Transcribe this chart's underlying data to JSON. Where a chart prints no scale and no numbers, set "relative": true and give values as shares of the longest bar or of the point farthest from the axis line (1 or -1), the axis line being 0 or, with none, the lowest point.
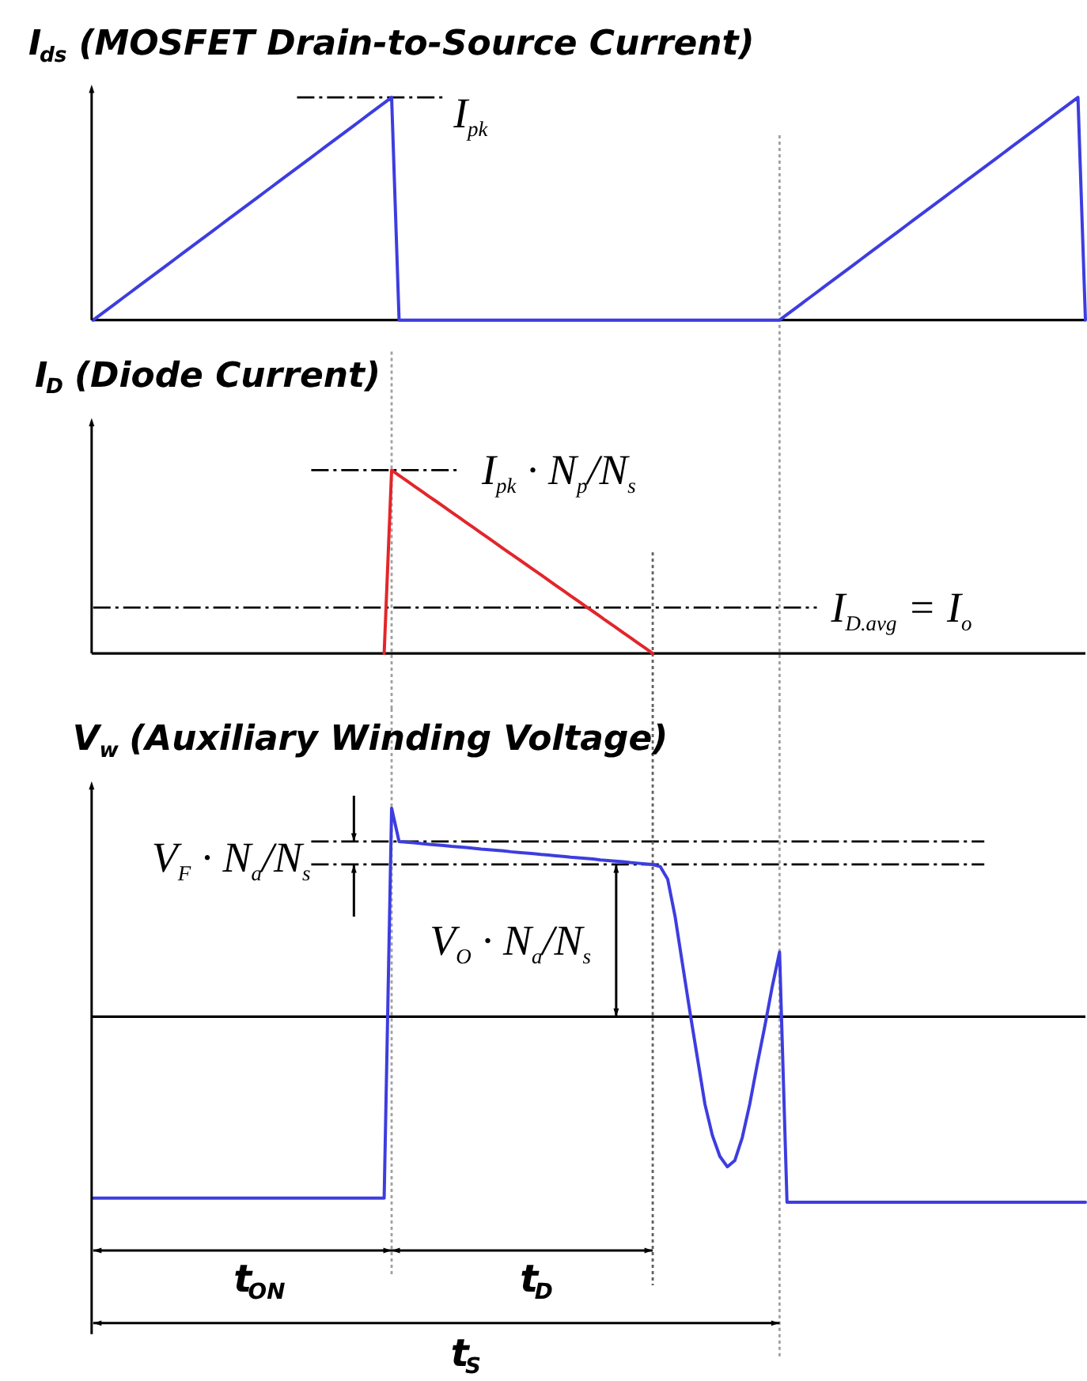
{
  "chart_data": [
    {
      "type": "line",
      "title": "I$_{ds}$ (MOSFET Drain-to-Source Current)",
      "relative": true,
      "tick_labels": false,
      "categories": [
        null,
        null,
        null,
        null,
        null,
        null,
        null,
        null,
        null,
        null,
        null,
        null,
        null,
        null,
        null,
        null,
        null,
        null,
        null,
        null,
        null,
        null,
        null,
        null,
        null,
        null,
        null,
        null,
        null,
        null,
        null,
        null,
        null,
        null,
        null,
        null,
        null,
        null,
        null,
        null,
        null,
        null,
        null,
        null,
        null,
        null,
        null,
        null,
        null,
        null,
        null,
        null,
        null,
        null,
        null,
        null,
        null,
        null,
        null,
        null,
        null,
        null,
        null,
        null,
        null,
        null,
        null,
        null,
        null,
        null,
        null,
        null,
        null,
        null,
        null,
        null,
        null,
        null,
        null,
        null,
        null,
        null,
        null,
        null,
        null,
        null,
        null,
        null,
        null,
        null,
        null,
        null,
        null,
        null,
        null,
        null,
        null,
        null,
        null,
        null,
        null,
        null,
        null,
        null,
        null,
        null,
        null,
        null,
        null,
        null,
        null,
        null,
        null,
        null,
        null,
        null,
        null,
        null,
        null,
        null,
        null,
        null,
        null,
        null,
        null,
        null,
        null,
        null,
        null,
        null,
        null,
        null,
        null,
        null
      ],
      "series": [
        {
          "color": "#3d3de0",
          "values": [
            0,
            0.025,
            0.05,
            0.075,
            0.1,
            0.125,
            0.15,
            0.175,
            0.2,
            0.225,
            0.25,
            0.275,
            0.3,
            0.325,
            0.35,
            0.375,
            0.4,
            0.425,
            0.45,
            0.475,
            0.5,
            0.525,
            0.55,
            0.575,
            0.6,
            0.625,
            0.65,
            0.675,
            0.7,
            0.725,
            0.75,
            0.775,
            0.8,
            0.825,
            0.85,
            0.875,
            0.9,
            0.925,
            0.95,
            0.975,
            1,
            0,
            0,
            0,
            0,
            0,
            0,
            0,
            0,
            0,
            0,
            0,
            0,
            0,
            0,
            0,
            0,
            0,
            0,
            0,
            0,
            0,
            0,
            0,
            0,
            0,
            0,
            0,
            0,
            0,
            0,
            0,
            0,
            0,
            0,
            0,
            0,
            0,
            0,
            0,
            0,
            0,
            0,
            0,
            0,
            0,
            0,
            0,
            0,
            0,
            0,
            0,
            0,
            0.025,
            0.05,
            0.075,
            0.1,
            0.125,
            0.15,
            0.175,
            0.2,
            0.225,
            0.25,
            0.275,
            0.3,
            0.325,
            0.35,
            0.375,
            0.4,
            0.425,
            0.45,
            0.475,
            0.5,
            0.525,
            0.55,
            0.575,
            0.6,
            0.625,
            0.65,
            0.675,
            0.7,
            0.725,
            0.75,
            0.775,
            0.8,
            0.825,
            0.85,
            0.875,
            0.9,
            0.925,
            0.95,
            0.975,
            1,
            0
          ]
        }
      ],
      "ref_lines": [
        {
          "axis": "y",
          "value": 1,
          "label": "I$_{pk}$",
          "line_style": "dashdot",
          "color": "#000000"
        }
      ]
    },
    {
      "type": "line",
      "title": "I$_{D}$ (Diode Current)",
      "relative": true,
      "tick_labels": false,
      "categories": [
        null,
        null,
        null,
        null,
        null,
        null,
        null,
        null,
        null,
        null,
        null,
        null,
        null,
        null,
        null,
        null,
        null,
        null,
        null,
        null,
        null,
        null,
        null,
        null,
        null,
        null,
        null,
        null,
        null,
        null,
        null,
        null,
        null,
        null,
        null,
        null,
        null,
        null,
        null,
        null,
        null,
        null,
        null,
        null,
        null,
        null,
        null,
        null,
        null,
        null,
        null,
        null,
        null,
        null,
        null,
        null,
        null,
        null,
        null,
        null,
        null,
        null,
        null,
        null,
        null,
        null,
        null,
        null,
        null,
        null,
        null,
        null,
        null,
        null,
        null,
        null,
        null,
        null,
        null,
        null,
        null,
        null,
        null,
        null,
        null,
        null,
        null,
        null,
        null,
        null,
        null,
        null,
        null,
        null,
        null,
        null,
        null,
        null,
        null,
        null,
        null,
        null,
        null,
        null,
        null,
        null,
        null,
        null,
        null,
        null,
        null,
        null,
        null,
        null,
        null,
        null,
        null,
        null,
        null,
        null,
        null,
        null,
        null,
        null,
        null,
        null,
        null,
        null,
        null,
        null,
        null,
        null,
        null,
        null
      ],
      "series": [
        {
          "color": "#e2262b",
          "values": [
            null,
            null,
            null,
            null,
            null,
            null,
            null,
            null,
            null,
            null,
            null,
            null,
            null,
            null,
            null,
            null,
            null,
            null,
            null,
            null,
            null,
            null,
            null,
            null,
            null,
            null,
            null,
            null,
            null,
            null,
            null,
            null,
            null,
            null,
            null,
            null,
            null,
            null,
            null,
            0,
            1,
            0.971,
            0.943,
            0.914,
            0.886,
            0.857,
            0.829,
            0.8,
            0.771,
            0.743,
            0.714,
            0.686,
            0.657,
            0.629,
            0.6,
            0.571,
            0.543,
            0.514,
            0.486,
            0.457,
            0.429,
            0.4,
            0.371,
            0.343,
            0.314,
            0.286,
            0.257,
            0.229,
            0.2,
            0.171,
            0.143,
            0.114,
            0.086,
            0.057,
            0.029,
            0,
            null,
            null,
            null,
            null,
            null,
            null,
            null,
            null,
            null,
            null,
            null,
            null,
            null,
            null,
            null,
            null,
            null,
            null,
            null,
            null,
            null,
            null,
            null,
            null,
            null,
            null,
            null,
            null,
            null,
            null,
            null,
            null,
            null,
            null,
            null,
            null,
            null,
            null,
            null,
            null,
            null,
            null,
            null,
            null,
            null,
            null,
            null,
            null,
            null,
            null,
            null,
            null,
            null,
            null,
            null,
            null,
            null,
            null
          ]
        }
      ],
      "ref_lines": [
        {
          "axis": "y",
          "value": 1,
          "label": "I$_{pk}$ · N$_{p}$/N$_{s}$",
          "line_style": "dashdot",
          "color": "#000000"
        },
        {
          "axis": "y",
          "value": 0.25,
          "label": "I$_{D.avg}$ = I$_{o}$",
          "line_style": "dashdot",
          "color": "#000000"
        }
      ]
    },
    {
      "type": "line",
      "title": "V$_{w}$ (Auxiliary Winding Voltage)",
      "relative": true,
      "tick_labels": false,
      "categories": [
        null,
        null,
        null,
        null,
        null,
        null,
        null,
        null,
        null,
        null,
        null,
        null,
        null,
        null,
        null,
        null,
        null,
        null,
        null,
        null,
        null,
        null,
        null,
        null,
        null,
        null,
        null,
        null,
        null,
        null,
        null,
        null,
        null,
        null,
        null,
        null,
        null,
        null,
        null,
        null,
        null,
        null,
        null,
        null,
        null,
        null,
        null,
        null,
        null,
        null,
        null,
        null,
        null,
        null,
        null,
        null,
        null,
        null,
        null,
        null,
        null,
        null,
        null,
        null,
        null,
        null,
        null,
        null,
        null,
        null,
        null,
        null,
        null,
        null,
        null,
        null,
        null,
        null,
        null,
        null,
        null,
        null,
        null,
        null,
        null,
        null,
        null,
        null,
        null,
        null,
        null,
        null,
        null,
        null,
        null,
        null,
        null,
        null,
        null,
        null,
        null,
        null,
        null,
        null,
        null,
        null,
        null,
        null,
        null,
        null,
        null,
        null,
        null,
        null,
        null,
        null,
        null,
        null,
        null,
        null,
        null,
        null,
        null,
        null,
        null,
        null,
        null,
        null,
        null,
        null,
        null,
        null,
        null,
        null
      ],
      "series": [
        {
          "color": "#3d3de0",
          "values": [
            -0.87,
            -0.87,
            -0.87,
            -0.87,
            -0.87,
            -0.87,
            -0.87,
            -0.87,
            -0.87,
            -0.87,
            -0.87,
            -0.87,
            -0.87,
            -0.87,
            -0.87,
            -0.87,
            -0.87,
            -0.87,
            -0.87,
            -0.87,
            -0.87,
            -0.87,
            -0.87,
            -0.87,
            -0.87,
            -0.87,
            -0.87,
            -0.87,
            -0.87,
            -0.87,
            -0.87,
            -0.87,
            -0.87,
            -0.87,
            -0.87,
            -0.87,
            -0.87,
            -0.87,
            -0.87,
            -0.87,
            1,
            0.84,
            0.837,
            0.834,
            0.83,
            0.827,
            0.824,
            0.821,
            0.817,
            0.814,
            0.811,
            0.808,
            0.804,
            0.801,
            0.798,
            0.795,
            0.791,
            0.788,
            0.785,
            0.782,
            0.778,
            0.775,
            0.772,
            0.769,
            0.765,
            0.762,
            0.759,
            0.756,
            0.752,
            0.749,
            0.746,
            0.743,
            0.739,
            0.736,
            0.733,
            0.73,
            0.72,
            0.66,
            0.48,
            0.25,
            0.02,
            -0.2,
            -0.42,
            -0.57,
            -0.67,
            -0.72,
            -0.69,
            -0.58,
            -0.42,
            -0.23,
            -0.05,
            0.14,
            0.31,
            -0.89,
            -0.89,
            -0.89,
            -0.89,
            -0.89,
            -0.89,
            -0.89,
            -0.89,
            -0.89,
            -0.89,
            -0.89,
            -0.89,
            -0.89,
            -0.89,
            -0.89,
            -0.89,
            -0.89,
            -0.89,
            -0.89,
            -0.89,
            -0.89,
            -0.89,
            -0.89,
            -0.89,
            -0.89,
            -0.89,
            -0.89,
            -0.89,
            -0.89,
            -0.89,
            -0.89,
            -0.89,
            -0.89,
            -0.89,
            -0.89,
            -0.89,
            -0.89,
            -0.89,
            -0.89,
            -0.89,
            -0.89
          ]
        }
      ],
      "ref_lines": [
        {
          "axis": "y",
          "value": 0.84,
          "line_style": "dashdot",
          "color": "#000000"
        },
        {
          "axis": "y",
          "value": 0.73,
          "line_style": "dashdot",
          "color": "#000000"
        }
      ],
      "annotations": [
        "V$_{F}$ · N$_{a}$/N$_{s}$",
        "V$_{O}$ · N$_{a}$/N$_{s}$",
        "t$_{ON}$",
        "t$_{D}$",
        "t$_{S}$"
      ]
    }
  ]
}
